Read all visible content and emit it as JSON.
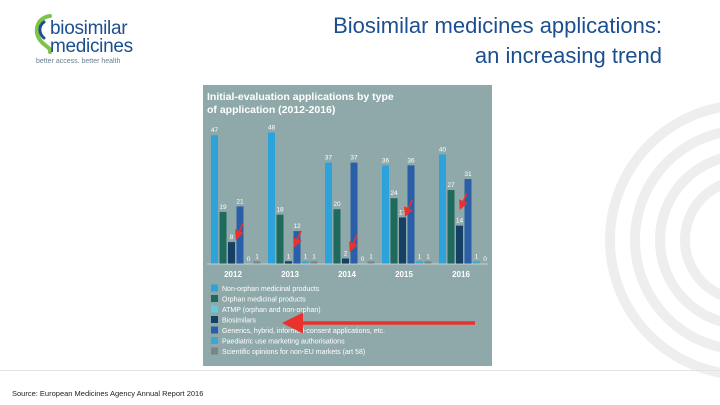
{
  "logo": {
    "line1": "biosimilar",
    "line2": "medicines",
    "tagline": "better access. better health"
  },
  "title": {
    "line1": "Biosimilar medicines applications:",
    "line2": "an increasing trend"
  },
  "source": "Source: European Medicines Agency Annual Report 2016",
  "chart_data": {
    "type": "bar",
    "title": "Initial-evaluation applications by type of application (2012-2016)",
    "categories": [
      "2012",
      "2013",
      "2014",
      "2015",
      "2016"
    ],
    "ylim": [
      0,
      50
    ],
    "series": [
      {
        "name": "Non-orphan medicinal products",
        "color": "#2ea3db",
        "values": [
          47,
          48,
          37,
          36,
          40
        ]
      },
      {
        "name": "Orphan medicinal products",
        "color": "#1e6b5e",
        "values": [
          19,
          18,
          20,
          24,
          27
        ]
      },
      {
        "name": "ATMP (orphan and non-orphan)",
        "color": "#66c9d8",
        "values": [
          null,
          null,
          null,
          null,
          null
        ]
      },
      {
        "name": "Biosimilars",
        "color": "#153f63",
        "values": [
          8,
          1,
          2,
          17,
          14
        ]
      },
      {
        "name": "Generics, hybrid, informed-consent applications, etc.",
        "color": "#2a5ea8",
        "values": [
          21,
          12,
          37,
          36,
          31
        ]
      },
      {
        "name": "Paediatric use marketing authorisations",
        "color": "#3aa8d4",
        "values": [
          0,
          1,
          0,
          1,
          1
        ]
      },
      {
        "name": "Scientific opinions for non-EU markets (art 58)",
        "color": "#7a8585",
        "values": [
          1,
          1,
          1,
          1,
          0
        ]
      }
    ],
    "bar_labels": [
      [
        "47",
        "19",
        "",
        "8",
        "21",
        "0",
        "1"
      ],
      [
        "48",
        "18",
        "",
        "1",
        "12",
        "1",
        "1"
      ],
      [
        "37",
        "20",
        "",
        "2",
        "37",
        "0",
        "1"
      ],
      [
        "36",
        "24",
        "",
        "17",
        "36",
        "1",
        "1"
      ],
      [
        "40",
        "27",
        "",
        "14",
        "31",
        "1",
        "0"
      ]
    ],
    "legend_position": "bottom",
    "colors": {
      "panel": "#8fa9aa",
      "text": "#ffffff",
      "arrow": "#e8322b"
    }
  }
}
